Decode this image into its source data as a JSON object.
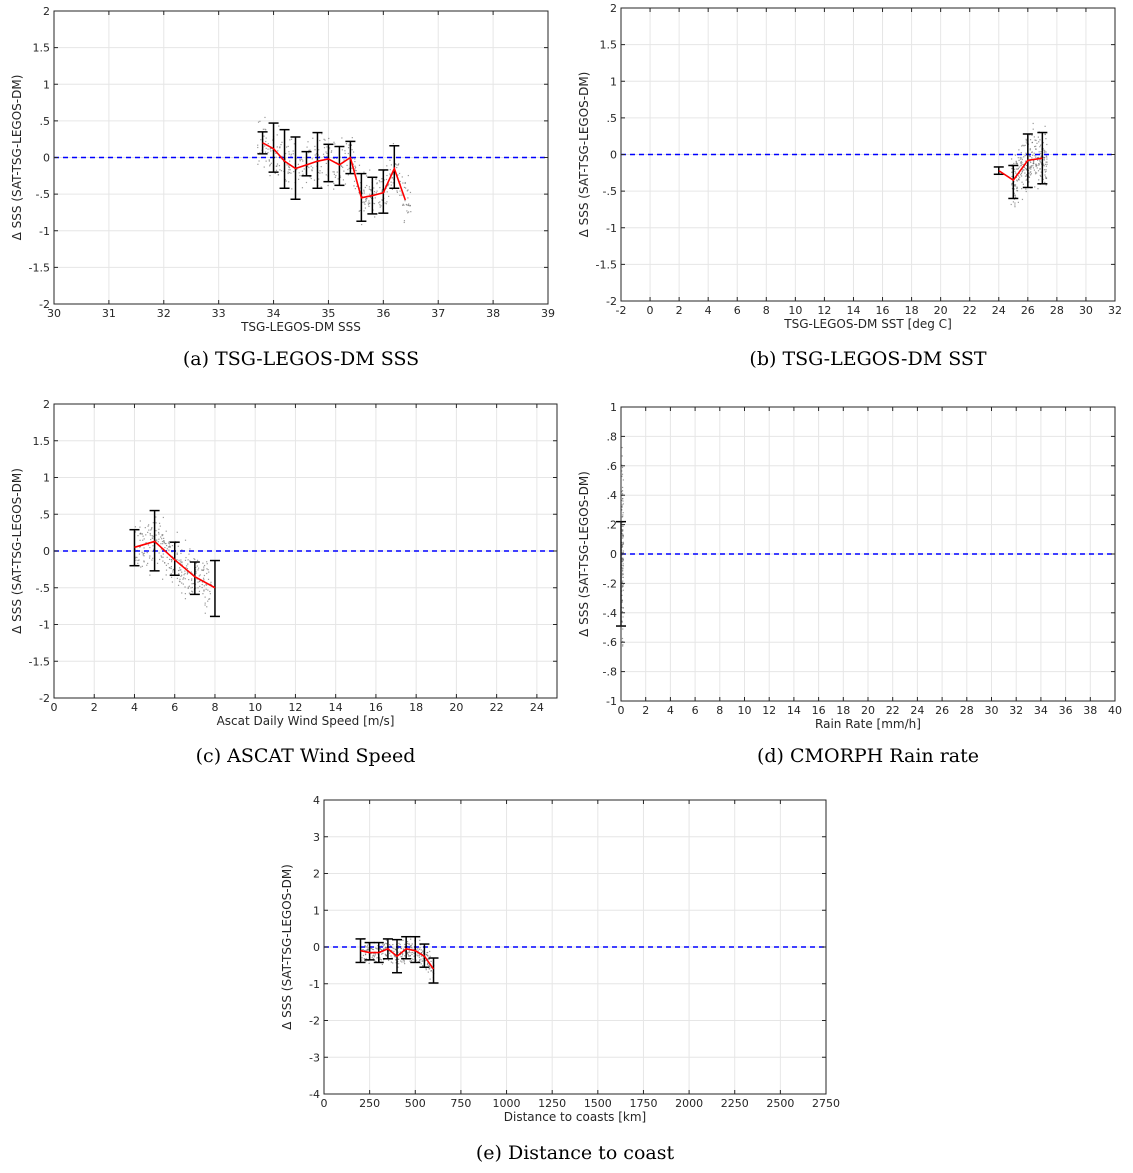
{
  "colors": {
    "grid": "#e6e6e6",
    "axis": "#262626",
    "zero_line": "#0000ff",
    "mean_line": "#ff0000",
    "error_bar": "#000000",
    "scatter": "#6e6e6e"
  },
  "chart_data": [
    {
      "type": "line",
      "caption": "(a) TSG-LEGOS-DM SSS",
      "xlabel": "TSG-LEGOS-DM SSS",
      "ylabel": "Δ SSS (SAT-TSG-LEGOS-DM)",
      "xlim": [
        30,
        39
      ],
      "ylim": [
        -2,
        2
      ],
      "xticks": [
        30,
        31,
        32,
        33,
        34,
        35,
        36,
        37,
        38,
        39
      ],
      "yticks": [
        -2,
        -1.5,
        -1,
        -0.5,
        0,
        0.5,
        1,
        1.5,
        2
      ],
      "grid": true,
      "zero_line": 0,
      "mean": {
        "x": [
          33.8,
          34.0,
          34.2,
          34.4,
          34.6,
          34.8,
          35.0,
          35.2,
          35.4,
          35.6,
          35.8,
          36.0,
          36.2,
          36.4
        ],
        "y": [
          0.2,
          0.12,
          -0.05,
          -0.15,
          -0.1,
          -0.05,
          -0.02,
          -0.1,
          0.0,
          -0.55,
          -0.52,
          -0.48,
          -0.15,
          -0.58
        ]
      },
      "error_bars": [
        {
          "x": 33.8,
          "low": 0.05,
          "high": 0.35
        },
        {
          "x": 34.0,
          "low": -0.2,
          "high": 0.47
        },
        {
          "x": 34.2,
          "low": -0.42,
          "high": 0.38
        },
        {
          "x": 34.4,
          "low": -0.57,
          "high": 0.28
        },
        {
          "x": 34.6,
          "low": -0.25,
          "high": 0.08
        },
        {
          "x": 34.8,
          "low": -0.42,
          "high": 0.34
        },
        {
          "x": 35.0,
          "low": -0.33,
          "high": 0.18
        },
        {
          "x": 35.2,
          "low": -0.38,
          "high": 0.15
        },
        {
          "x": 35.4,
          "low": -0.22,
          "high": 0.22
        },
        {
          "x": 35.6,
          "low": -0.87,
          "high": -0.22
        },
        {
          "x": 35.8,
          "low": -0.77,
          "high": -0.27
        },
        {
          "x": 36.0,
          "low": -0.76,
          "high": -0.17
        },
        {
          "x": 36.2,
          "low": -0.42,
          "high": 0.16
        }
      ],
      "scatter": {
        "x_range": [
          33.7,
          36.5
        ],
        "y_center_from_mean": true,
        "spread": 0.45,
        "count": 420
      }
    },
    {
      "type": "line",
      "caption": "(b) TSG-LEGOS-DM SST",
      "xlabel": "TSG-LEGOS-DM SST [deg C]",
      "ylabel": "Δ SSS (SAT-TSG-LEGOS-DM)",
      "xlim": [
        -2,
        32
      ],
      "ylim": [
        -2,
        2
      ],
      "xticks": [
        -2,
        0,
        2,
        4,
        6,
        8,
        10,
        12,
        14,
        16,
        18,
        20,
        22,
        24,
        26,
        28,
        30,
        32
      ],
      "yticks": [
        -2,
        -1.5,
        -1,
        -0.5,
        0,
        0.5,
        1,
        1.5,
        2
      ],
      "grid": true,
      "zero_line": 0,
      "mean": {
        "x": [
          24.0,
          25.0,
          26.0,
          27.0
        ],
        "y": [
          -0.22,
          -0.35,
          -0.08,
          -0.05
        ]
      },
      "error_bars": [
        {
          "x": 24.0,
          "low": -0.27,
          "high": -0.17
        },
        {
          "x": 25.0,
          "low": -0.6,
          "high": -0.15
        },
        {
          "x": 26.0,
          "low": -0.45,
          "high": 0.28
        },
        {
          "x": 27.0,
          "low": -0.4,
          "high": 0.3
        }
      ],
      "scatter": {
        "x_range": [
          24.8,
          27.3
        ],
        "y_center_from_mean": true,
        "spread": 0.55,
        "count": 300
      }
    },
    {
      "type": "line",
      "caption": "(c) ASCAT Wind Speed",
      "xlabel": "Ascat Daily Wind Speed [m/s]",
      "ylabel": "Δ SSS (SAT-TSG-LEGOS-DM)",
      "xlim": [
        0,
        25
      ],
      "ylim": [
        -2,
        2
      ],
      "xticks": [
        0,
        2,
        4,
        6,
        8,
        10,
        12,
        14,
        16,
        18,
        20,
        22,
        24
      ],
      "yticks": [
        -2,
        -1.5,
        -1,
        -0.5,
        0,
        0.5,
        1,
        1.5,
        2
      ],
      "grid": true,
      "zero_line": 0,
      "mean": {
        "x": [
          4,
          5,
          6,
          7,
          8
        ],
        "y": [
          0.05,
          0.13,
          -0.12,
          -0.35,
          -0.5
        ]
      },
      "error_bars": [
        {
          "x": 4,
          "low": -0.2,
          "high": 0.29
        },
        {
          "x": 5,
          "low": -0.27,
          "high": 0.55
        },
        {
          "x": 6,
          "low": -0.33,
          "high": 0.12
        },
        {
          "x": 7,
          "low": -0.59,
          "high": -0.15
        },
        {
          "x": 8,
          "low": -0.89,
          "high": -0.13
        }
      ],
      "scatter": {
        "x_range": [
          4.0,
          7.8
        ],
        "y_center_from_mean": true,
        "spread": 0.5,
        "count": 300
      }
    },
    {
      "type": "line",
      "caption": "(d) CMORPH Rain rate",
      "xlabel": "Rain Rate [mm/h]",
      "ylabel": "Δ SSS (SAT-TSG-LEGOS-DM)",
      "xlim": [
        0,
        40
      ],
      "ylim": [
        -1,
        1
      ],
      "xticks": [
        0,
        2,
        4,
        6,
        8,
        10,
        12,
        14,
        16,
        18,
        20,
        22,
        24,
        26,
        28,
        30,
        32,
        34,
        36,
        38,
        40
      ],
      "yticks": [
        -1,
        -0.8,
        -0.6,
        -0.4,
        -0.2,
        0,
        0.2,
        0.4,
        0.6,
        0.8,
        1
      ],
      "grid": true,
      "zero_line": 0,
      "mean": {
        "x": [
          0
        ],
        "y": [
          -0.13
        ]
      },
      "error_bars": [
        {
          "x": 0,
          "low": -0.49,
          "high": 0.22
        }
      ],
      "scatter": {
        "x_range": [
          0.0,
          0.15
        ],
        "y_center_from_mean": false,
        "y_center": 0.0,
        "spread": 0.85,
        "count": 120
      }
    },
    {
      "type": "line",
      "caption": "(e) Distance to coast",
      "xlabel": "Distance to coasts [km]",
      "ylabel": "Δ SSS (SAT-TSG-LEGOS-DM)",
      "xlim": [
        0,
        2750
      ],
      "ylim": [
        -4,
        4
      ],
      "xticks": [
        0,
        250,
        500,
        750,
        1000,
        1250,
        1500,
        1750,
        2000,
        2250,
        2500,
        2750
      ],
      "yticks": [
        -4,
        -3,
        -2,
        -1,
        0,
        1,
        2,
        3,
        4
      ],
      "grid": true,
      "zero_line": 0,
      "mean": {
        "x": [
          200,
          250,
          300,
          350,
          400,
          450,
          500,
          550,
          600
        ],
        "y": [
          -0.1,
          -0.15,
          -0.15,
          -0.05,
          -0.25,
          -0.05,
          -0.1,
          -0.25,
          -0.6
        ]
      },
      "error_bars": [
        {
          "x": 200,
          "low": -0.42,
          "high": 0.22
        },
        {
          "x": 250,
          "low": -0.35,
          "high": 0.12
        },
        {
          "x": 300,
          "low": -0.42,
          "high": 0.12
        },
        {
          "x": 350,
          "low": -0.32,
          "high": 0.22
        },
        {
          "x": 400,
          "low": -0.7,
          "high": 0.2
        },
        {
          "x": 450,
          "low": -0.32,
          "high": 0.28
        },
        {
          "x": 500,
          "low": -0.42,
          "high": 0.28
        },
        {
          "x": 550,
          "low": -0.55,
          "high": 0.08
        },
        {
          "x": 600,
          "low": -0.98,
          "high": -0.3
        }
      ],
      "scatter": {
        "x_range": [
          200,
          600
        ],
        "y_center_from_mean": true,
        "spread": 0.45,
        "count": 320
      }
    }
  ]
}
